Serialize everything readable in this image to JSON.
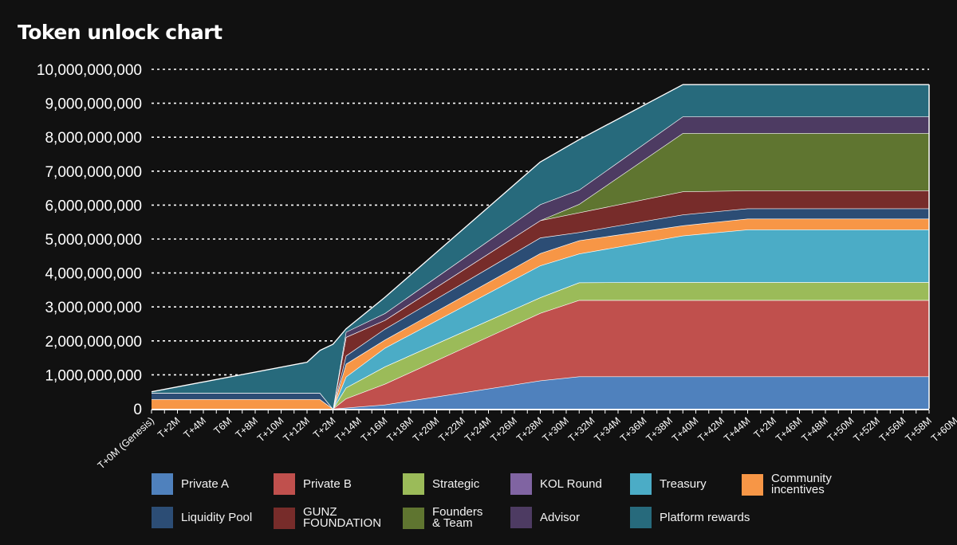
{
  "chart_data": {
    "type": "area",
    "stacked": true,
    "title": "Token unlock chart",
    "xlabel": "",
    "ylabel": "",
    "ylim": [
      0,
      10000000000
    ],
    "yticks": [
      "0",
      "1,000,000,000",
      "2,000,000,000",
      "3,000,000,000",
      "4,000,000,000",
      "5,000,000,000",
      "6,000,000,000",
      "7,000,000,000",
      "8,000,000,000",
      "9,000,000,000",
      "10,000,000,000"
    ],
    "xlim": [
      0,
      60
    ],
    "xtick_labels": [
      "T+0M (Genesis)",
      "T+2M",
      "T+4M",
      "T6M",
      "T+8M",
      "T+10M",
      "T+12M",
      "T+2M",
      "T+14M",
      "T+16M",
      "T+18M",
      "T+20M",
      "T+22M",
      "T+24M",
      "T+26M",
      "T+28M",
      "T+30M",
      "T+32M",
      "T+34M",
      "T+36M",
      "T+38M",
      "T+40M",
      "T+42M",
      "T+44M",
      "T+2M",
      "T+46M",
      "T+48M",
      "T+50M",
      "T+52M",
      "T+56M",
      "T+58M",
      "T+60M"
    ],
    "x": [
      0,
      12,
      13,
      14,
      15,
      18,
      30,
      33,
      41,
      46,
      60
    ],
    "value_unit": "billion tokens",
    "legend_position": "bottom",
    "series": [
      {
        "name": "Private A",
        "color": "#4f81bd",
        "values": [
          0,
          0,
          0,
          0,
          0.03,
          0.12,
          0.83,
          0.95,
          0.95,
          0.95,
          0.95
        ]
      },
      {
        "name": "Private B",
        "color": "#c0504d",
        "values": [
          0,
          0,
          0,
          0,
          0.27,
          0.61,
          1.99,
          2.25,
          2.25,
          2.25,
          2.25
        ]
      },
      {
        "name": "Strategic",
        "color": "#9bbb59",
        "values": [
          0,
          0,
          0,
          0,
          0.32,
          0.51,
          0.46,
          0.52,
          0.53,
          0.53,
          0.53
        ]
      },
      {
        "name": "KOL Round",
        "color": "#8064a2",
        "values": [
          0,
          0,
          0,
          0,
          0,
          0,
          0,
          0,
          0,
          0,
          0
        ]
      },
      {
        "name": "Treasury",
        "color": "#4bacc6",
        "values": [
          0,
          0,
          0,
          0,
          0.32,
          0.55,
          0.94,
          0.85,
          1.37,
          1.55,
          1.55
        ]
      },
      {
        "name": "Community\nincentives",
        "color": "#f79646",
        "values": [
          0.28,
          0.28,
          0.28,
          0,
          0.38,
          0.24,
          0.36,
          0.39,
          0.3,
          0.32,
          0.32
        ]
      },
      {
        "name": "Liquidity Pool",
        "color": "#2c4d75",
        "values": [
          0.19,
          0.19,
          0.19,
          0,
          0.24,
          0.32,
          0.46,
          0.24,
          0.32,
          0.3,
          0.3
        ]
      },
      {
        "name": "GUNZ\nFOUNDATION",
        "color": "#772c2a",
        "values": [
          0,
          0,
          0,
          0,
          0.55,
          0.26,
          0.51,
          0.58,
          0.68,
          0.53,
          0.53
        ]
      },
      {
        "name": "Founders\n& Team",
        "color": "#5f7530",
        "values": [
          0,
          0,
          0,
          0,
          0,
          0,
          0,
          0.25,
          1.72,
          1.69,
          1.69
        ]
      },
      {
        "name": "Advisor",
        "color": "#4d3b62",
        "values": [
          0,
          0,
          0,
          0,
          0.15,
          0.2,
          0.47,
          0.42,
          0.49,
          0.49,
          0.49
        ]
      },
      {
        "name": "Platform rewards",
        "color": "#276a7c",
        "values": [
          0.03,
          0.9,
          1.25,
          1.9,
          0.09,
          0.47,
          1.25,
          1.48,
          0.94,
          0.94,
          0.94
        ]
      }
    ]
  }
}
